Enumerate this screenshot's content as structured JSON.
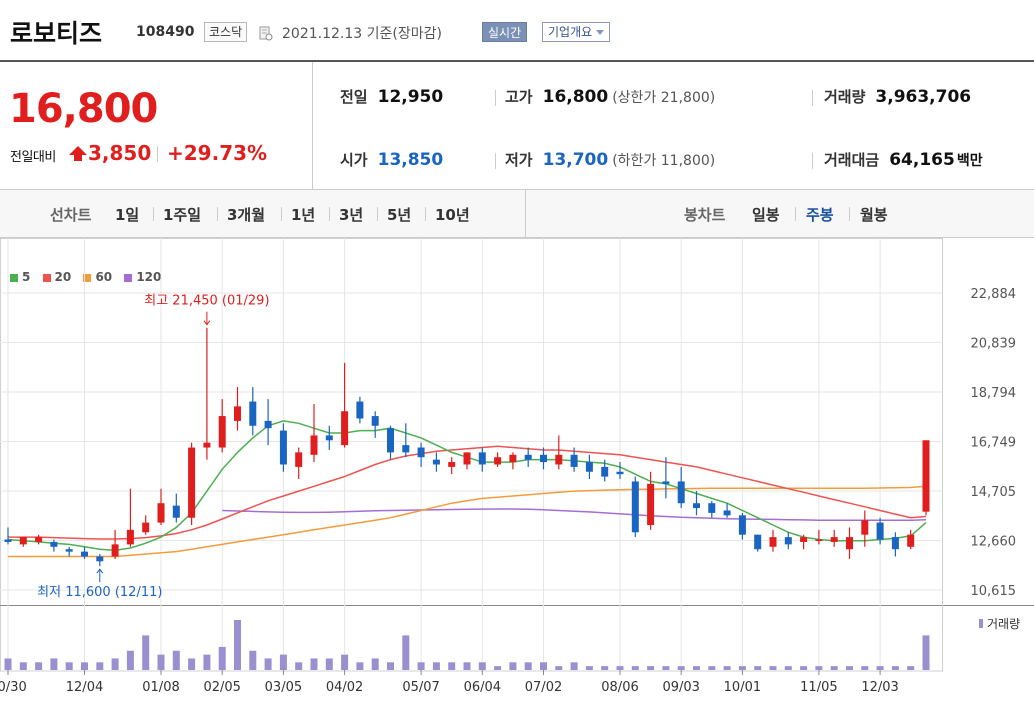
{
  "header": {
    "stock_name": "로보티즈",
    "stock_code": "108490",
    "market": "코스닥",
    "date_label": "2021.12.13 기준(장마감)",
    "realtime_label": "실시간",
    "company_label": "기업개요",
    "icons": {
      "doc": "document-icon",
      "caret": "chevron-down-icon"
    }
  },
  "summary": {
    "current_price": "16,800",
    "prev_label": "전일대비",
    "change_value": "3,850",
    "change_rate": "+29.73%",
    "up_icon": "up-triangle-icon",
    "stats": {
      "prev_close_label": "전일",
      "prev_close": "12,950",
      "high_label": "고가",
      "high": "16,800",
      "upper_limit": "(상한가 21,800)",
      "volume_label": "거래량",
      "volume": "3,963,706",
      "open_label": "시가",
      "open": "13,850",
      "low_label": "저가",
      "low": "13,700",
      "lower_limit": "(하한가 11,800)",
      "amount_label": "거래대금",
      "amount": "64,165",
      "amount_unit": "백만"
    }
  },
  "period_bar": {
    "line_title": "선차트",
    "line_items": [
      "1일",
      "1주일",
      "3개월",
      "1년",
      "3년",
      "5년",
      "10년"
    ],
    "candle_title": "봉차트",
    "candle_items": [
      "일봉",
      "주봉",
      "월봉"
    ],
    "candle_active": "주봉"
  },
  "colors": {
    "up": "#e01e1e",
    "down": "#1a64c2",
    "ma5": "#4caf50",
    "ma20": "#ef5350",
    "ma60": "#f39c3c",
    "ma120": "#a56ed4",
    "volume": "#9b8fd0",
    "grid": "#e6e6e6"
  },
  "chart_data": {
    "type": "candlestick",
    "legend": [
      {
        "name": "5",
        "color": "#4caf50"
      },
      {
        "name": "20",
        "color": "#ef5350"
      },
      {
        "name": "60",
        "color": "#f39c3c"
      },
      {
        "name": "120",
        "color": "#a56ed4"
      }
    ],
    "y_ticks": [
      "22,884",
      "20,839",
      "18,794",
      "16,749",
      "14,705",
      "12,660",
      "10,615"
    ],
    "ylim": [
      10615,
      22884
    ],
    "x_ticks": [
      "10/30",
      "12/04",
      "01/08",
      "02/05",
      "03/05",
      "04/02",
      "05/07",
      "06/04",
      "07/02",
      "08/06",
      "09/03",
      "10/01",
      "11/05",
      "12/03"
    ],
    "x_tick_indices": [
      0,
      5,
      10,
      14,
      18,
      22,
      27,
      31,
      35,
      40,
      44,
      48,
      53,
      57
    ],
    "annotation_high": "최고 21,450 (01/29)",
    "annotation_high_index": 13,
    "annotation_high_value": 21450,
    "annotation_low": "최저 11,600 (12/11)",
    "annotation_low_index": 6,
    "annotation_low_value": 11600,
    "volume_label": "거래량",
    "candles": [
      [
        12700,
        13200,
        12600,
        12500
      ],
      [
        12500,
        12800,
        12800,
        12400
      ],
      [
        12600,
        12900,
        12800,
        12500
      ],
      [
        12600,
        12700,
        12400,
        12200
      ],
      [
        12300,
        12400,
        12200,
        12000
      ],
      [
        12200,
        12400,
        12000,
        11900
      ],
      [
        12000,
        12100,
        11800,
        11600
      ],
      [
        12000,
        13100,
        12500,
        11900
      ],
      [
        12500,
        14800,
        13100,
        12400
      ],
      [
        13000,
        13700,
        13400,
        12900
      ],
      [
        13400,
        14800,
        14200,
        13300
      ],
      [
        14100,
        14600,
        13600,
        13400
      ],
      [
        13600,
        16700,
        16500,
        13300
      ],
      [
        16500,
        21450,
        16700,
        16000
      ],
      [
        16500,
        18500,
        17800,
        16300
      ],
      [
        17600,
        19000,
        18200,
        17200
      ],
      [
        18400,
        19000,
        17400,
        17000
      ],
      [
        17600,
        18500,
        17300,
        16600
      ],
      [
        17200,
        17500,
        15800,
        15500
      ],
      [
        15700,
        16500,
        16300,
        15200
      ],
      [
        16200,
        18300,
        17000,
        15900
      ],
      [
        17000,
        17400,
        16800,
        16400
      ],
      [
        16600,
        20000,
        18000,
        16500
      ],
      [
        18400,
        18600,
        17700,
        17500
      ],
      [
        17800,
        18000,
        17400,
        16900
      ],
      [
        17300,
        17400,
        16300,
        16000
      ],
      [
        16600,
        17500,
        16300,
        16100
      ],
      [
        16500,
        16700,
        16100,
        15700
      ],
      [
        16000,
        16300,
        15800,
        15500
      ],
      [
        15700,
        16100,
        15900,
        15400
      ],
      [
        15800,
        16300,
        16300,
        15600
      ],
      [
        16300,
        16500,
        15800,
        15500
      ],
      [
        15800,
        16300,
        16100,
        15700
      ],
      [
        15900,
        16300,
        16200,
        15600
      ],
      [
        16200,
        16500,
        16000,
        15700
      ],
      [
        16200,
        16500,
        15900,
        15600
      ],
      [
        15800,
        17000,
        16200,
        15600
      ],
      [
        16200,
        16500,
        15700,
        15500
      ],
      [
        15900,
        16200,
        15500,
        15200
      ],
      [
        15700,
        16000,
        15300,
        15100
      ],
      [
        15500,
        15900,
        15400,
        15200
      ],
      [
        15100,
        15300,
        13000,
        12800
      ],
      [
        13300,
        15500,
        15000,
        13100
      ],
      [
        15100,
        16100,
        15000,
        14400
      ],
      [
        15100,
        15700,
        14200,
        14000
      ],
      [
        14200,
        14700,
        14000,
        13700
      ],
      [
        14200,
        14300,
        13800,
        13600
      ],
      [
        13900,
        14200,
        13700,
        13600
      ],
      [
        13700,
        13800,
        12900,
        12700
      ],
      [
        12900,
        12900,
        12300,
        12200
      ],
      [
        12400,
        13100,
        12800,
        12200
      ],
      [
        12800,
        13000,
        12500,
        12300
      ],
      [
        12600,
        12900,
        12800,
        12300
      ],
      [
        12700,
        13100,
        12700,
        12500
      ],
      [
        12600,
        13100,
        12800,
        12400
      ],
      [
        12300,
        13200,
        12800,
        11900
      ],
      [
        12900,
        13900,
        13500,
        12400
      ],
      [
        13400,
        13600,
        12700,
        12500
      ],
      [
        12800,
        13000,
        12300,
        12000
      ],
      [
        12400,
        13100,
        12900,
        12300
      ],
      [
        13850,
        16800,
        16800,
        13700
      ]
    ],
    "ma5": [
      12700,
      12650,
      12600,
      12550,
      12500,
      12400,
      12300,
      12250,
      12350,
      12550,
      12800,
      13200,
      13800,
      14700,
      15600,
      16300,
      16900,
      17400,
      17600,
      17500,
      17300,
      17100,
      17100,
      17200,
      17200,
      17300,
      17100,
      16900,
      16600,
      16300,
      16100,
      15900,
      15900,
      15900,
      16000,
      16000,
      16000,
      15950,
      15900,
      15850,
      15700,
      15400,
      15100,
      15000,
      14800,
      14600,
      14400,
      14200,
      13900,
      13600,
      13300,
      13000,
      12800,
      12700,
      12650,
      12650,
      12650,
      12700,
      12750,
      12850,
      13400
    ],
    "ma20": [
      12800,
      12800,
      12800,
      12780,
      12760,
      12740,
      12720,
      12720,
      12740,
      12780,
      12850,
      12950,
      13100,
      13300,
      13550,
      13800,
      14050,
      14300,
      14500,
      14700,
      14900,
      15100,
      15300,
      15550,
      15800,
      16000,
      16150,
      16250,
      16350,
      16400,
      16450,
      16500,
      16550,
      16500,
      16450,
      16400,
      16400,
      16350,
      16300,
      16250,
      16200,
      16100,
      16000,
      15900,
      15800,
      15700,
      15550,
      15400,
      15250,
      15100,
      14950,
      14800,
      14650,
      14500,
      14350,
      14200,
      14050,
      13900,
      13750,
      13600,
      13650
    ],
    "ma60": [
      12000,
      12000,
      12000,
      12000,
      12000,
      12000,
      12000,
      12000,
      12050,
      12100,
      12150,
      12200,
      12300,
      12400,
      12500,
      12600,
      12700,
      12800,
      12900,
      13000,
      13100,
      13200,
      13300,
      13400,
      13500,
      13600,
      13750,
      13900,
      14050,
      14200,
      14300,
      14400,
      14450,
      14500,
      14550,
      14600,
      14650,
      14700,
      14720,
      14740,
      14760,
      14770,
      14780,
      14790,
      14800,
      14810,
      14820,
      14820,
      14820,
      14820,
      14820,
      14820,
      14820,
      14820,
      14820,
      14820,
      14820,
      14830,
      14840,
      14850,
      14900
    ],
    "ma120": [
      null,
      null,
      null,
      null,
      null,
      null,
      null,
      null,
      null,
      null,
      null,
      null,
      null,
      null,
      13900,
      13880,
      13860,
      13840,
      13830,
      13820,
      13820,
      13830,
      13850,
      13870,
      13890,
      13900,
      13910,
      13920,
      13930,
      13940,
      13950,
      13955,
      13960,
      13960,
      13950,
      13930,
      13900,
      13870,
      13840,
      13800,
      13760,
      13720,
      13680,
      13650,
      13620,
      13600,
      13580,
      13560,
      13550,
      13540,
      13530,
      13520,
      13510,
      13500,
      13500,
      13500,
      13500,
      13500,
      13500,
      13500,
      13520
    ],
    "volume": [
      3,
      2,
      2,
      3,
      2,
      2,
      2,
      3,
      5,
      9,
      4,
      5,
      3,
      4,
      6,
      13,
      5,
      3,
      4,
      2,
      3,
      3,
      4,
      2,
      3,
      2,
      9,
      2,
      2,
      2,
      2,
      2,
      1,
      2,
      2,
      2,
      1,
      2,
      1,
      1,
      1,
      1,
      1,
      1,
      1,
      1,
      1,
      1,
      1,
      1,
      1,
      1,
      1,
      1,
      1,
      1,
      1,
      1,
      1,
      1,
      9
    ]
  }
}
